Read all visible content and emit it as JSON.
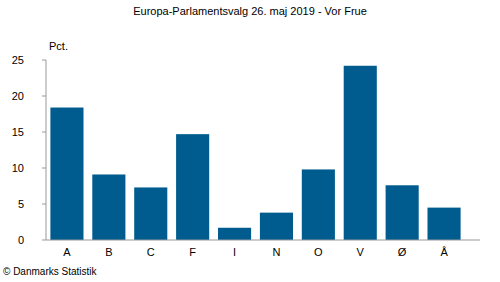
{
  "chart_data": {
    "type": "bar",
    "title": "Europa-Parlamentsvalg 26. maj 2019 - Vor Frue",
    "ylabel": "Pct.",
    "annotations": [
      "© Danmarks Statistik"
    ],
    "categories": [
      "A",
      "B",
      "C",
      "F",
      "I",
      "N",
      "O",
      "V",
      "Ø",
      "Å"
    ],
    "values": [
      18.4,
      9.1,
      7.3,
      14.7,
      1.7,
      3.8,
      9.8,
      24.2,
      7.6,
      4.5
    ],
    "color": "#005b8e",
    "ylim": [
      0,
      25
    ],
    "yticks": [
      0,
      5,
      10,
      15,
      20,
      25
    ],
    "grid": false
  }
}
